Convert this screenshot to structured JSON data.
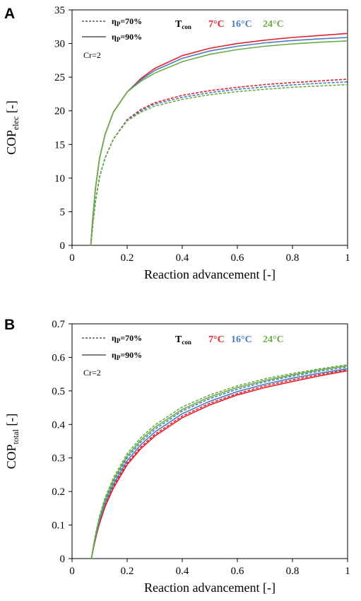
{
  "chart_data": [
    {
      "panel": "A",
      "type": "line",
      "xlabel": "Reaction advancement [-]",
      "ylabel_main": "COP",
      "ylabel_sub": "elec",
      "ylabel_unit": " [-]",
      "xlim": [
        0,
        1
      ],
      "ylim": [
        0,
        35
      ],
      "xticks": [
        0,
        0.2,
        0.4,
        0.6,
        0.8,
        1
      ],
      "xtick_labels": [
        "0",
        "0.2",
        "0.4",
        "0.6",
        "0.8",
        "1"
      ],
      "yticks": [
        0,
        5,
        10,
        15,
        20,
        25,
        30,
        35
      ],
      "ytick_labels": [
        "0",
        "5",
        "10",
        "15",
        "20",
        "25",
        "30",
        "35"
      ],
      "grid": false,
      "legend": {
        "placement": "top-left",
        "entries": [
          {
            "sym": "η",
            "sub": "P",
            "rest": "=70%",
            "style": "dashed"
          },
          {
            "sym": "η",
            "sub": "P",
            "rest": "=90%",
            "style": "solid"
          }
        ],
        "note": "Cr=2",
        "tcon_main": "T",
        "tcon_sub": "con",
        "temps": [
          {
            "label": "7°C",
            "color": "#e8202a"
          },
          {
            "label": "16°C",
            "color": "#4a7cc4"
          },
          {
            "label": "24°C",
            "color": "#6aad45"
          }
        ]
      },
      "series": [
        {
          "temp": "7°C",
          "eta": "70%",
          "style": "dashed",
          "color": "#e8202a",
          "x": [
            0.068,
            0.075,
            0.085,
            0.1,
            0.12,
            0.15,
            0.2,
            0.25,
            0.3,
            0.4,
            0.5,
            0.6,
            0.7,
            0.8,
            0.9,
            1.0
          ],
          "y": [
            0,
            3.0,
            6.5,
            10.2,
            13.0,
            15.8,
            18.7,
            20.2,
            21.2,
            22.3,
            23.0,
            23.5,
            23.9,
            24.2,
            24.45,
            24.7
          ]
        },
        {
          "temp": "16°C",
          "eta": "70%",
          "style": "dashed",
          "color": "#4a7cc4",
          "x": [
            0.068,
            0.075,
            0.085,
            0.1,
            0.12,
            0.15,
            0.2,
            0.25,
            0.3,
            0.4,
            0.5,
            0.6,
            0.7,
            0.8,
            0.9,
            1.0
          ],
          "y": [
            0,
            3.0,
            6.5,
            10.2,
            13.0,
            15.8,
            18.6,
            20.0,
            21.0,
            22.0,
            22.7,
            23.2,
            23.55,
            23.85,
            24.1,
            24.3
          ]
        },
        {
          "temp": "24°C",
          "eta": "70%",
          "style": "dashed",
          "color": "#6aad45",
          "x": [
            0.068,
            0.075,
            0.085,
            0.1,
            0.12,
            0.15,
            0.2,
            0.25,
            0.3,
            0.4,
            0.5,
            0.6,
            0.7,
            0.8,
            0.9,
            1.0
          ],
          "y": [
            0,
            3.0,
            6.5,
            10.2,
            13.0,
            15.8,
            18.5,
            19.8,
            20.7,
            21.7,
            22.4,
            22.85,
            23.2,
            23.5,
            23.7,
            23.9
          ]
        },
        {
          "temp": "7°C",
          "eta": "90%",
          "style": "solid",
          "color": "#e8202a",
          "x": [
            0.068,
            0.075,
            0.085,
            0.1,
            0.12,
            0.15,
            0.2,
            0.25,
            0.3,
            0.4,
            0.5,
            0.6,
            0.7,
            0.8,
            0.9,
            1.0
          ],
          "y": [
            0,
            4.0,
            8.5,
            13.0,
            16.5,
            19.8,
            22.8,
            24.8,
            26.3,
            28.2,
            29.3,
            30.0,
            30.5,
            30.9,
            31.2,
            31.5
          ]
        },
        {
          "temp": "16°C",
          "eta": "90%",
          "style": "solid",
          "color": "#4a7cc4",
          "x": [
            0.068,
            0.075,
            0.085,
            0.1,
            0.12,
            0.15,
            0.2,
            0.25,
            0.3,
            0.4,
            0.5,
            0.6,
            0.7,
            0.8,
            0.9,
            1.0
          ],
          "y": [
            0,
            4.0,
            8.5,
            13.0,
            16.5,
            19.8,
            22.8,
            24.6,
            26.0,
            27.8,
            28.9,
            29.6,
            30.1,
            30.45,
            30.7,
            30.9
          ]
        },
        {
          "temp": "24°C",
          "eta": "90%",
          "style": "solid",
          "color": "#6aad45",
          "x": [
            0.068,
            0.075,
            0.085,
            0.1,
            0.12,
            0.15,
            0.2,
            0.25,
            0.3,
            0.4,
            0.5,
            0.6,
            0.7,
            0.8,
            0.9,
            1.0
          ],
          "y": [
            0,
            4.0,
            8.5,
            13.0,
            16.5,
            19.8,
            22.8,
            24.4,
            25.6,
            27.3,
            28.4,
            29.1,
            29.6,
            29.95,
            30.2,
            30.4
          ]
        }
      ]
    },
    {
      "panel": "B",
      "type": "line",
      "xlabel": "Reaction advancement [-]",
      "ylabel_main": "COP",
      "ylabel_sub": "total",
      "ylabel_unit": " [-]",
      "xlim": [
        0,
        1
      ],
      "ylim": [
        0,
        0.7
      ],
      "xticks": [
        0,
        0.2,
        0.4,
        0.6,
        0.8,
        1
      ],
      "xtick_labels": [
        "0",
        "0.2",
        "0.4",
        "0.6",
        "0.8",
        "1"
      ],
      "yticks": [
        0,
        0.1,
        0.2,
        0.3,
        0.4,
        0.5,
        0.6,
        0.7
      ],
      "ytick_labels": [
        "0",
        "0.1",
        "0.2",
        "0.3",
        "0.4",
        "0.5",
        "0.6",
        "0.7"
      ],
      "grid": false,
      "legend": {
        "placement": "top-left",
        "entries": [
          {
            "sym": "η",
            "sub": "P",
            "rest": "=70%",
            "style": "dashed"
          },
          {
            "sym": "η",
            "sub": "P",
            "rest": "=90%",
            "style": "solid"
          }
        ],
        "note": "Cr=2",
        "tcon_main": "T",
        "tcon_sub": "con",
        "temps": [
          {
            "label": "7°C",
            "color": "#e8202a"
          },
          {
            "label": "16°C",
            "color": "#4a7cc4"
          },
          {
            "label": "24°C",
            "color": "#6aad45"
          }
        ]
      },
      "series": [
        {
          "temp": "7°C",
          "eta": "90%",
          "style": "solid",
          "color": "#e8202a",
          "x": [
            0.07,
            0.08,
            0.09,
            0.1,
            0.12,
            0.15,
            0.2,
            0.25,
            0.3,
            0.4,
            0.5,
            0.6,
            0.7,
            0.8,
            0.9,
            1.0
          ],
          "y": [
            0,
            0.04,
            0.075,
            0.105,
            0.155,
            0.21,
            0.28,
            0.328,
            0.365,
            0.42,
            0.458,
            0.488,
            0.51,
            0.528,
            0.545,
            0.56
          ]
        },
        {
          "temp": "7°C",
          "eta": "70%",
          "style": "dashed",
          "color": "#e8202a",
          "x": [
            0.07,
            0.08,
            0.09,
            0.1,
            0.12,
            0.15,
            0.2,
            0.25,
            0.3,
            0.4,
            0.5,
            0.6,
            0.7,
            0.8,
            0.9,
            1.0
          ],
          "y": [
            0,
            0.042,
            0.078,
            0.11,
            0.16,
            0.215,
            0.285,
            0.333,
            0.37,
            0.425,
            0.463,
            0.492,
            0.515,
            0.533,
            0.549,
            0.563
          ]
        },
        {
          "temp": "16°C",
          "eta": "90%",
          "style": "solid",
          "color": "#4a7cc4",
          "x": [
            0.07,
            0.08,
            0.09,
            0.1,
            0.12,
            0.15,
            0.2,
            0.25,
            0.3,
            0.4,
            0.5,
            0.6,
            0.7,
            0.8,
            0.9,
            1.0
          ],
          "y": [
            0,
            0.044,
            0.081,
            0.114,
            0.165,
            0.221,
            0.292,
            0.34,
            0.377,
            0.432,
            0.469,
            0.498,
            0.52,
            0.538,
            0.553,
            0.566
          ]
        },
        {
          "temp": "16°C",
          "eta": "70%",
          "style": "dashed",
          "color": "#4a7cc4",
          "x": [
            0.07,
            0.08,
            0.09,
            0.1,
            0.12,
            0.15,
            0.2,
            0.25,
            0.3,
            0.4,
            0.5,
            0.6,
            0.7,
            0.8,
            0.9,
            1.0
          ],
          "y": [
            0,
            0.046,
            0.085,
            0.119,
            0.171,
            0.228,
            0.3,
            0.348,
            0.385,
            0.44,
            0.477,
            0.505,
            0.527,
            0.544,
            0.559,
            0.571
          ]
        },
        {
          "temp": "24°C",
          "eta": "90%",
          "style": "solid",
          "color": "#6aad45",
          "x": [
            0.07,
            0.08,
            0.09,
            0.1,
            0.12,
            0.15,
            0.2,
            0.25,
            0.3,
            0.4,
            0.5,
            0.6,
            0.7,
            0.8,
            0.9,
            1.0
          ],
          "y": [
            0,
            0.048,
            0.088,
            0.123,
            0.176,
            0.234,
            0.306,
            0.354,
            0.391,
            0.445,
            0.482,
            0.51,
            0.531,
            0.548,
            0.563,
            0.575
          ]
        },
        {
          "temp": "24°C",
          "eta": "70%",
          "style": "dashed",
          "color": "#6aad45",
          "x": [
            0.07,
            0.08,
            0.09,
            0.1,
            0.12,
            0.15,
            0.2,
            0.25,
            0.3,
            0.4,
            0.5,
            0.6,
            0.7,
            0.8,
            0.9,
            1.0
          ],
          "y": [
            0,
            0.05,
            0.092,
            0.128,
            0.182,
            0.241,
            0.313,
            0.361,
            0.398,
            0.452,
            0.488,
            0.515,
            0.536,
            0.552,
            0.566,
            0.578
          ]
        }
      ]
    }
  ]
}
